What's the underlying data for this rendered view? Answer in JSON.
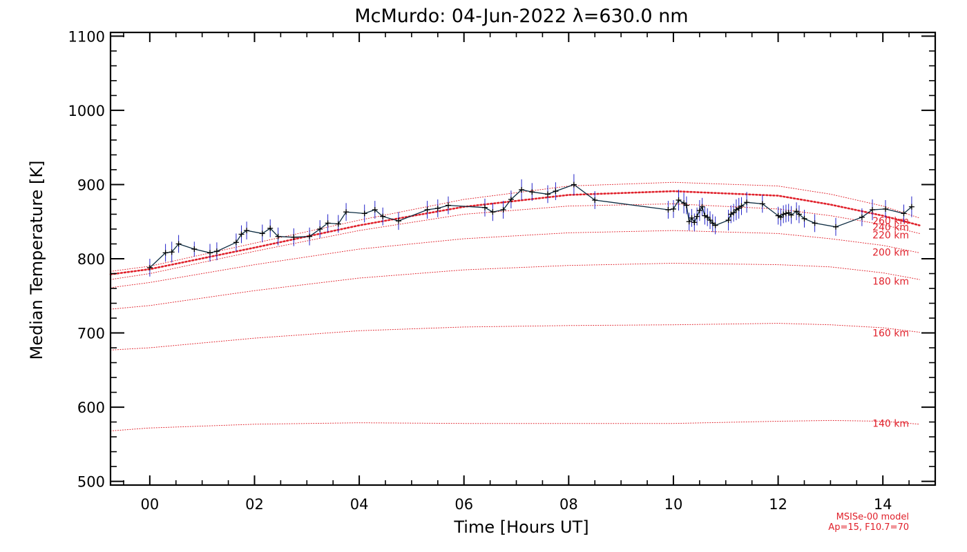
{
  "chart_data": {
    "type": "line",
    "title": "McMurdo: 04-Jun-2022 λ=630.0 nm",
    "xlabel": "Time [Hours UT]",
    "ylabel": "Median Temperature [K]",
    "xlim": [
      -0.75,
      15.0
    ],
    "ylim": [
      495,
      1105
    ],
    "x_ticks": [
      0,
      2,
      4,
      6,
      8,
      10,
      12,
      14
    ],
    "x_tick_labels": [
      "00",
      "02",
      "04",
      "06",
      "08",
      "10",
      "12",
      "14"
    ],
    "y_ticks": [
      500,
      600,
      700,
      800,
      900,
      1000,
      1100
    ],
    "y_tick_labels": [
      "500",
      "600",
      "700",
      "800",
      "900",
      "1000",
      "1100"
    ],
    "model_note": [
      "MSISe-00 model",
      "Ap=15, F10.7=70"
    ],
    "colors": {
      "measured": "#0a2a40",
      "errorbar": "#2020c8",
      "model": "#e0202a",
      "frame": "#000000"
    },
    "measured": {
      "x": [
        0.0,
        0.3,
        0.42,
        0.55,
        0.85,
        1.15,
        1.28,
        1.65,
        1.75,
        1.85,
        2.15,
        2.3,
        2.45,
        2.75,
        3.05,
        3.25,
        3.4,
        3.6,
        3.75,
        4.1,
        4.3,
        4.45,
        4.75,
        5.3,
        5.5,
        5.7,
        6.4,
        6.55,
        6.75,
        6.9,
        7.1,
        7.3,
        7.6,
        7.75,
        8.1,
        8.5,
        9.9,
        10.0,
        10.1,
        10.2,
        10.25,
        10.3,
        10.35,
        10.4,
        10.45,
        10.5,
        10.55,
        10.6,
        10.65,
        10.7,
        10.75,
        10.8,
        11.05,
        11.1,
        11.15,
        11.2,
        11.25,
        11.3,
        11.4,
        11.7,
        12.0,
        12.05,
        12.1,
        12.15,
        12.2,
        12.25,
        12.35,
        12.4,
        12.5,
        12.7,
        13.1,
        13.6,
        13.8,
        14.05,
        14.4,
        14.55
      ],
      "y": [
        788,
        808,
        809,
        820,
        813,
        808,
        810,
        822,
        833,
        838,
        834,
        841,
        830,
        829,
        830,
        840,
        848,
        847,
        863,
        861,
        866,
        857,
        851,
        866,
        868,
        872,
        869,
        863,
        866,
        880,
        893,
        890,
        887,
        891,
        900,
        879,
        866,
        867,
        879,
        875,
        872,
        850,
        855,
        849,
        857,
        865,
        870,
        858,
        856,
        852,
        848,
        845,
        852,
        860,
        862,
        866,
        868,
        871,
        876,
        874,
        858,
        856,
        860,
        861,
        862,
        859,
        864,
        860,
        854,
        848,
        843,
        856,
        866,
        867,
        861,
        870
      ],
      "err": [
        12,
        12,
        14,
        12,
        10,
        12,
        12,
        12,
        12,
        12,
        12,
        12,
        12,
        12,
        12,
        12,
        12,
        12,
        12,
        12,
        12,
        12,
        12,
        12,
        12,
        12,
        12,
        12,
        12,
        12,
        14,
        12,
        12,
        12,
        14,
        12,
        12,
        12,
        14,
        14,
        12,
        12,
        12,
        12,
        12,
        14,
        12,
        12,
        12,
        12,
        12,
        12,
        14,
        12,
        12,
        14,
        14,
        12,
        14,
        12,
        12,
        12,
        12,
        12,
        12,
        12,
        12,
        12,
        12,
        12,
        12,
        12,
        14,
        12,
        12,
        14
      ]
    },
    "model_curves": [
      {
        "label": "140 km",
        "x": [
          -0.75,
          0.0,
          2.0,
          4.0,
          6.0,
          8.0,
          10.0,
          12.0,
          13.0,
          14.0,
          14.7
        ],
        "y": [
          568,
          572,
          577,
          579,
          578,
          578,
          578,
          581,
          582,
          581,
          577
        ]
      },
      {
        "label": "160 km",
        "x": [
          -0.75,
          0.0,
          2.0,
          4.0,
          6.0,
          8.0,
          10.0,
          12.0,
          13.0,
          14.0,
          14.7
        ],
        "y": [
          677,
          680,
          693,
          703,
          708,
          710,
          711,
          713,
          711,
          707,
          701
        ]
      },
      {
        "label": "180 km",
        "x": [
          -0.75,
          0.0,
          2.0,
          4.0,
          6.0,
          8.0,
          10.0,
          12.0,
          13.0,
          14.0,
          14.7
        ],
        "y": [
          732,
          737,
          757,
          774,
          785,
          791,
          794,
          792,
          789,
          781,
          772
        ]
      },
      {
        "label": "200 km",
        "x": [
          -0.75,
          0.0,
          2.0,
          4.0,
          6.0,
          8.0,
          10.0,
          12.0,
          13.0,
          14.0,
          14.7
        ],
        "y": [
          761,
          768,
          792,
          813,
          827,
          835,
          838,
          834,
          827,
          818,
          808
        ]
      },
      {
        "label": "220 km",
        "x": [
          -0.75,
          0.0,
          2.0,
          4.0,
          6.0,
          8.0,
          10.0,
          12.0,
          13.0,
          14.0,
          14.7
        ],
        "y": [
          772,
          780,
          810,
          838,
          860,
          871,
          874,
          867,
          858,
          846,
          834
        ]
      },
      {
        "label": "240 km",
        "x": [
          -0.75,
          0.0,
          2.0,
          4.0,
          6.0,
          8.0,
          10.0,
          12.0,
          13.0,
          14.0,
          14.7
        ],
        "y": [
          779,
          786,
          815,
          845,
          870,
          886,
          891,
          885,
          873,
          858,
          845
        ]
      },
      {
        "label": "260 km",
        "x": [
          -0.75,
          0.0,
          2.0,
          4.0,
          6.0,
          8.0,
          10.0,
          12.0,
          13.0,
          14.0,
          14.7
        ],
        "y": [
          783,
          790,
          821,
          852,
          880,
          898,
          903,
          898,
          887,
          871,
          855
        ]
      }
    ],
    "model_label_y": {
      "140 km": 578,
      "160 km": 700,
      "180 km": 770,
      "200 km": 809,
      "220 km": 832,
      "240 km": 843,
      "260 km": 851
    },
    "emphasized_curve": "240 km",
    "legend": "none",
    "grid": false
  }
}
